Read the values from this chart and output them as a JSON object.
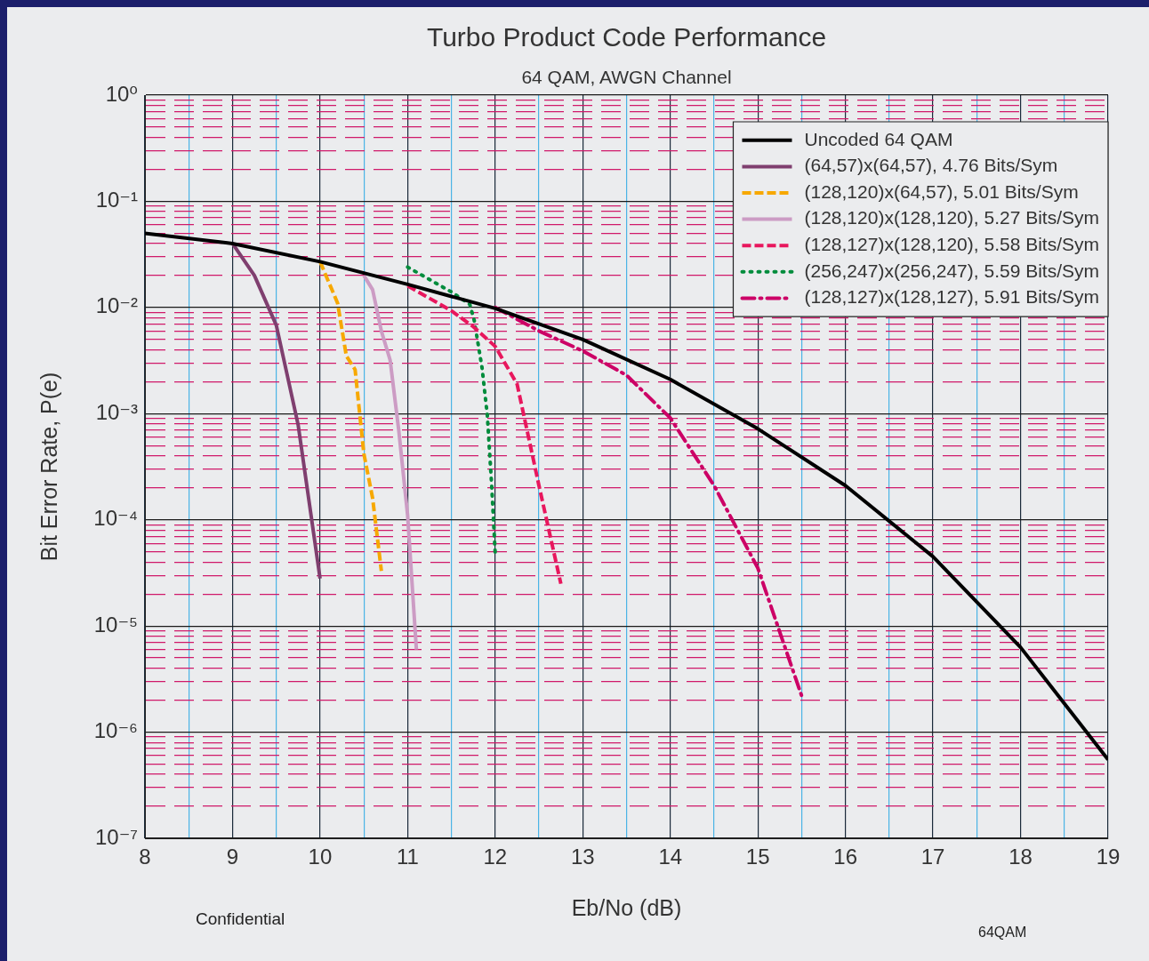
{
  "chart_data": {
    "type": "line",
    "title": "Turbo Product Code Performance",
    "subtitle": "64 QAM, AWGN Channel",
    "xlabel": "Eb/No (dB)",
    "ylabel": "Bit Error Rate, P(e)",
    "annotations": [
      "Confidential",
      "64QAM"
    ],
    "log": "y",
    "grid": true,
    "legend": "top right",
    "marker": "none",
    "xlim": [
      8,
      19
    ],
    "ylim": [
      1e-07,
      1
    ],
    "xticks": [
      8,
      {
        "value": 8.5,
        "label": null
      },
      9,
      {
        "value": 9.5,
        "label": null
      },
      10,
      {
        "value": 10.5,
        "label": null
      },
      11,
      {
        "value": 11.5,
        "label": null
      },
      12,
      {
        "value": 12.5,
        "label": null
      },
      13,
      {
        "value": 13.5,
        "label": null
      },
      14,
      {
        "value": 14.5,
        "label": null
      },
      15,
      {
        "value": 15.5,
        "label": null
      },
      16,
      {
        "value": 16.5,
        "label": null
      },
      17,
      {
        "value": 17.5,
        "label": null
      },
      18,
      {
        "value": 18.5,
        "label": null
      },
      19
    ],
    "yticks": [
      {
        "value": 1e-07,
        "label": "10⁻⁷"
      },
      {
        "value": 2e-07,
        "label": null
      },
      {
        "value": 3e-07,
        "label": null
      },
      {
        "value": 4e-07,
        "label": null
      },
      {
        "value": 5e-07,
        "label": null
      },
      {
        "value": 6e-07,
        "label": null
      },
      {
        "value": 7e-07,
        "label": null
      },
      {
        "value": 8e-07,
        "label": null
      },
      {
        "value": 9e-07,
        "label": null
      },
      {
        "value": 1e-06,
        "label": "10⁻⁶"
      },
      {
        "value": 2e-06,
        "label": null
      },
      {
        "value": 3e-06,
        "label": null
      },
      {
        "value": 4e-06,
        "label": null
      },
      {
        "value": 5e-06,
        "label": null
      },
      {
        "value": 6e-06,
        "label": null
      },
      {
        "value": 7e-06,
        "label": null
      },
      {
        "value": 8e-06,
        "label": null
      },
      {
        "value": 9e-06,
        "label": null
      },
      {
        "value": 1e-05,
        "label": "10⁻⁵"
      },
      {
        "value": 2e-05,
        "label": null
      },
      {
        "value": 3e-05,
        "label": null
      },
      {
        "value": 4e-05,
        "label": null
      },
      {
        "value": 5e-05,
        "label": null
      },
      {
        "value": 6e-05,
        "label": null
      },
      {
        "value": 7e-05,
        "label": null
      },
      {
        "value": 8e-05,
        "label": null
      },
      {
        "value": 9e-05,
        "label": null
      },
      {
        "value": 0.0001,
        "label": "10⁻⁴"
      },
      {
        "value": 0.0002,
        "label": null
      },
      {
        "value": 0.0003,
        "label": null
      },
      {
        "value": 0.0004,
        "label": null
      },
      {
        "value": 0.0005,
        "label": null
      },
      {
        "value": 0.0006,
        "label": null
      },
      {
        "value": 0.0007,
        "label": null
      },
      {
        "value": 0.0008,
        "label": null
      },
      {
        "value": 0.0009,
        "label": null
      },
      {
        "value": 0.001,
        "label": "10⁻³"
      },
      {
        "value": 0.002,
        "label": null
      },
      {
        "value": 0.003,
        "label": null
      },
      {
        "value": 0.004,
        "label": null
      },
      {
        "value": 0.005,
        "label": null
      },
      {
        "value": 0.006,
        "label": null
      },
      {
        "value": 0.007,
        "label": null
      },
      {
        "value": 0.008,
        "label": null
      },
      {
        "value": 0.009,
        "label": null
      },
      {
        "value": 0.01,
        "label": "10⁻²"
      },
      {
        "value": 0.02,
        "label": null
      },
      {
        "value": 0.03,
        "label": null
      },
      {
        "value": 0.04,
        "label": null
      },
      {
        "value": 0.05,
        "label": null
      },
      {
        "value": 0.06,
        "label": null
      },
      {
        "value": 0.07,
        "label": null
      },
      {
        "value": 0.08,
        "label": null
      },
      {
        "value": 0.09,
        "label": null
      },
      {
        "value": 0.1,
        "label": "10⁻¹"
      },
      {
        "value": 0.2,
        "label": null
      },
      {
        "value": 0.3,
        "label": null
      },
      {
        "value": 0.4,
        "label": null
      },
      {
        "value": 0.5,
        "label": null
      },
      {
        "value": 0.6,
        "label": null
      },
      {
        "value": 0.7,
        "label": null
      },
      {
        "value": 0.8,
        "label": null
      },
      {
        "value": 0.9,
        "label": null
      },
      {
        "value": 1,
        "label": "10⁰"
      }
    ],
    "series": [
      {
        "name": "Uncoded 64 QAM",
        "color": "#000000",
        "line_style": "solid",
        "x": [
          8,
          9,
          10,
          11,
          12,
          13,
          14,
          15,
          16,
          17,
          18,
          19
        ],
        "values": [
          0.05,
          0.04,
          0.027,
          0.0165,
          0.0098,
          0.005,
          0.0021,
          0.00072,
          0.00021,
          4.5e-05,
          6.3e-06,
          5.5e-07
        ]
      },
      {
        "name": "(64,57)x(64,57), 4.76 Bits/Sym",
        "color": "#7f3f6f",
        "line_style": "solid",
        "x": [
          9,
          9.25,
          9.5,
          9.75,
          10
        ],
        "values": [
          0.04,
          0.02,
          0.0068,
          0.00078,
          2.8e-05
        ]
      },
      {
        "name": "(128,120)x(64,57), 5.01 Bits/Sym",
        "color": "#f7a800",
        "line_style": "dashed",
        "x": [
          10,
          10.2,
          10.3,
          10.4,
          10.5,
          10.6,
          10.7
        ],
        "values": [
          0.027,
          0.011,
          0.0035,
          0.0026,
          0.00042,
          0.00016,
          3.3e-05
        ]
      },
      {
        "name": "(128,120)x(128,120), 5.27 Bits/Sym",
        "color": "#cc9cc4",
        "line_style": "solid",
        "x": [
          10.5,
          10.6,
          10.7,
          10.8,
          10.9,
          11,
          11.1
        ],
        "values": [
          0.02,
          0.0147,
          0.006,
          0.0032,
          0.00068,
          0.00011,
          6e-06
        ]
      },
      {
        "name": "(128,127)x(128,120), 5.58 Bits/Sym",
        "color": "#e8175d",
        "line_style": "dashed",
        "x": [
          11,
          11.5,
          11.75,
          12,
          12.25,
          12.5,
          12.75
        ],
        "values": [
          0.016,
          0.0093,
          0.0066,
          0.0043,
          0.0019,
          0.00021,
          2.5e-05
        ]
      },
      {
        "name": "(256,247)x(256,247), 5.59 Bits/Sym",
        "color": "#008c3c",
        "line_style": "dotted",
        "x": [
          11,
          11.5,
          11.71,
          11.76,
          11.85,
          11.91,
          11.96,
          12
        ],
        "values": [
          0.024,
          0.014,
          0.0107,
          0.0076,
          0.0027,
          0.00097,
          0.00021,
          4.9e-05
        ]
      },
      {
        "name": "(128,127)x(128,127), 5.91 Bits/Sym",
        "color": "#cc0066",
        "line_style": "dashdot",
        "x": [
          12,
          12.5,
          13,
          13.5,
          14,
          14.5,
          15,
          15.5
        ],
        "values": [
          0.01,
          0.006,
          0.0039,
          0.0023,
          0.00091,
          0.00021,
          3.5e-05,
          2.2e-06
        ]
      }
    ]
  }
}
